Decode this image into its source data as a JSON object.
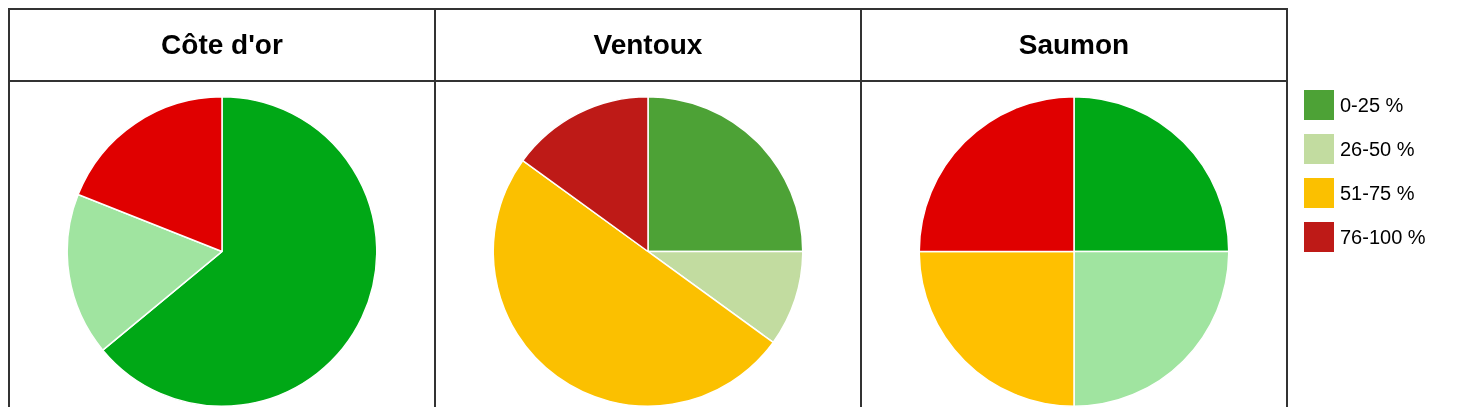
{
  "chart_data": [
    {
      "type": "pie",
      "title": "Côte d'or",
      "categories": [
        null,
        null,
        null,
        null
      ],
      "values": [
        64,
        17,
        0,
        19
      ],
      "colors": [
        "#00a816",
        "#a0e4a0",
        "#ffc000",
        "#e00000"
      ]
    },
    {
      "type": "pie",
      "title": "Ventoux",
      "categories": [
        "0-25 %",
        "26-50 %",
        "51-75 %",
        "76-100 %"
      ],
      "values": [
        25,
        10,
        50,
        15
      ],
      "colors": [
        "#4da236",
        "#c2dca0",
        "#fbc000",
        "#be1a17"
      ],
      "legend": "right"
    },
    {
      "type": "pie",
      "title": "Saumon",
      "categories": [
        null,
        null,
        null,
        null
      ],
      "values": [
        25,
        25,
        25,
        25
      ],
      "colors": [
        "#00a816",
        "#a0e4a0",
        "#ffc000",
        "#e00000"
      ]
    }
  ]
}
